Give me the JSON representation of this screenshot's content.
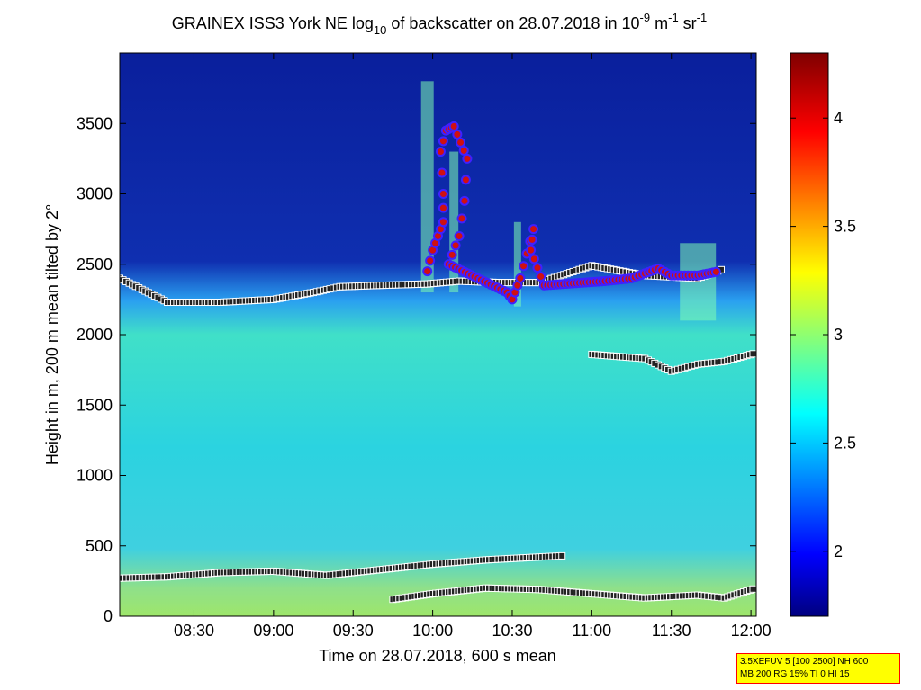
{
  "chart_data": {
    "type": "heatmap",
    "title": {
      "prefix": "GRAINEX ISS3 York NE log",
      "sub": "10",
      "middle": " of backscatter on 28.07.2018 in 10",
      "exp1": "-9",
      "unit1": " m",
      "exp2": "-1",
      "unit2": " sr",
      "exp3": "-1"
    },
    "xlabel": "Time on 28.07.2018, 600 s mean",
    "ylabel": "Height in m, 200 m mean tilted by 2°",
    "x_ticks": [
      "08:30",
      "09:00",
      "09:30",
      "10:00",
      "10:30",
      "11:00",
      "11:30",
      "12:00"
    ],
    "x_tick_minutes": [
      510,
      540,
      570,
      600,
      630,
      660,
      690,
      720
    ],
    "xlim_minutes": [
      482,
      722
    ],
    "y_ticks": [
      0,
      500,
      1000,
      1500,
      2000,
      2500,
      3000,
      3500
    ],
    "ylim": [
      0,
      4000
    ],
    "colorbar": {
      "ticks": [
        2,
        2.5,
        3,
        3.5,
        4
      ],
      "clim": [
        1.7,
        4.3
      ],
      "colormap": "jet"
    },
    "info_box": {
      "line1": "3.5XEFUV 5 [100 2500] NH 600",
      "line2": "MB 200 RG 15% TI 0 HI 15"
    },
    "layers": {
      "boundary_layer_top": [
        [
          482,
          2400
        ],
        [
          500,
          2230
        ],
        [
          520,
          2230
        ],
        [
          540,
          2250
        ],
        [
          555,
          2300
        ],
        [
          565,
          2340
        ],
        [
          580,
          2350
        ],
        [
          598,
          2360
        ],
        [
          610,
          2380
        ],
        [
          625,
          2370
        ],
        [
          640,
          2370
        ],
        [
          660,
          2490
        ],
        [
          680,
          2420
        ],
        [
          700,
          2400
        ],
        [
          710,
          2470
        ]
      ],
      "mixed_layer": [
        [
          482,
          270
        ],
        [
          500,
          280
        ],
        [
          520,
          310
        ],
        [
          540,
          320
        ],
        [
          560,
          290
        ],
        [
          580,
          330
        ],
        [
          600,
          370
        ],
        [
          620,
          400
        ],
        [
          640,
          420
        ],
        [
          650,
          430
        ]
      ],
      "surface_layer": [
        [
          585,
          120
        ],
        [
          600,
          160
        ],
        [
          620,
          200
        ],
        [
          640,
          190
        ],
        [
          660,
          160
        ],
        [
          680,
          130
        ],
        [
          700,
          150
        ],
        [
          710,
          130
        ],
        [
          722,
          200
        ]
      ],
      "upper_cloud_layer": [
        [
          660,
          1860
        ],
        [
          680,
          1830
        ],
        [
          690,
          1740
        ],
        [
          700,
          1790
        ],
        [
          710,
          1810
        ],
        [
          722,
          1870
        ]
      ],
      "cloud_base": [
        [
          598,
          2450
        ],
        [
          600,
          2600
        ],
        [
          602,
          2700
        ],
        [
          604,
          2800
        ],
        [
          604,
          3000
        ],
        [
          603,
          3300
        ],
        [
          605,
          3450
        ],
        [
          608,
          3480
        ],
        [
          613,
          3250
        ],
        [
          612,
          2950
        ],
        [
          610,
          2700
        ],
        [
          606,
          2500
        ],
        [
          628,
          2300
        ],
        [
          630,
          2250
        ],
        [
          633,
          2400
        ],
        [
          638,
          2750
        ],
        [
          637,
          2600
        ],
        [
          642,
          2350
        ],
        [
          665,
          2380
        ],
        [
          675,
          2400
        ],
        [
          685,
          2470
        ],
        [
          690,
          2420
        ],
        [
          700,
          2420
        ],
        [
          708,
          2450
        ]
      ]
    }
  }
}
